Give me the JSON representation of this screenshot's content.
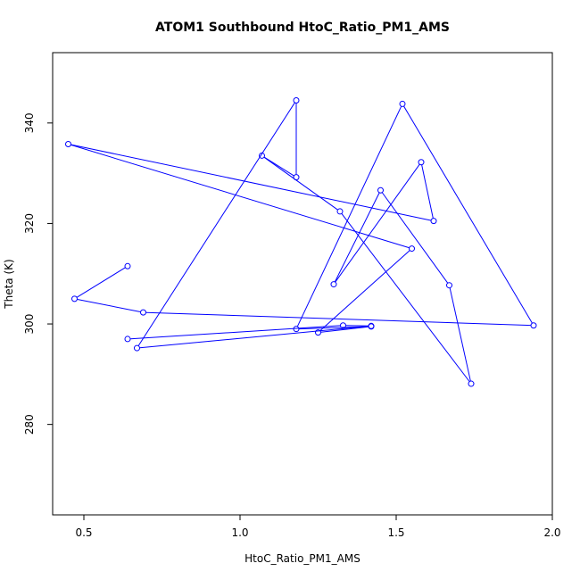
{
  "chart_data": {
    "type": "line",
    "title": "ATOM1 Southbound HtoC_Ratio_PM1_AMS",
    "xlabel": "HtoC_Ratio_PM1_AMS",
    "ylabel": "Theta (K)",
    "xlim": [
      0.4,
      2.0
    ],
    "ylim": [
      262,
      354
    ],
    "xticks": [
      0.5,
      1.0,
      1.5,
      2.0
    ],
    "xtick_labels": [
      "0.5",
      "1.0",
      "1.5",
      "2.0"
    ],
    "yticks": [
      280,
      300,
      320,
      340
    ],
    "ytick_labels": [
      "280",
      "300",
      "320",
      "340"
    ],
    "grid": false,
    "legend": "none",
    "series": [
      {
        "color": "#0000ff",
        "marker": "open-circle",
        "x": [
          0.64,
          0.47,
          0.69,
          1.94,
          1.52,
          1.18,
          1.42,
          1.25,
          1.55,
          0.45,
          1.62,
          1.58,
          1.3,
          1.45,
          1.67,
          1.74,
          1.32,
          1.07,
          1.18,
          1.18,
          0.67,
          1.42,
          1.33,
          0.64
        ],
        "y": [
          311.5,
          305.0,
          302.3,
          299.7,
          343.8,
          299.0,
          299.5,
          298.3,
          315.0,
          335.8,
          320.5,
          332.2,
          307.9,
          326.6,
          307.7,
          288.1,
          322.4,
          333.5,
          329.2,
          344.5,
          295.2,
          299.6,
          299.7,
          297.0
        ]
      }
    ]
  }
}
